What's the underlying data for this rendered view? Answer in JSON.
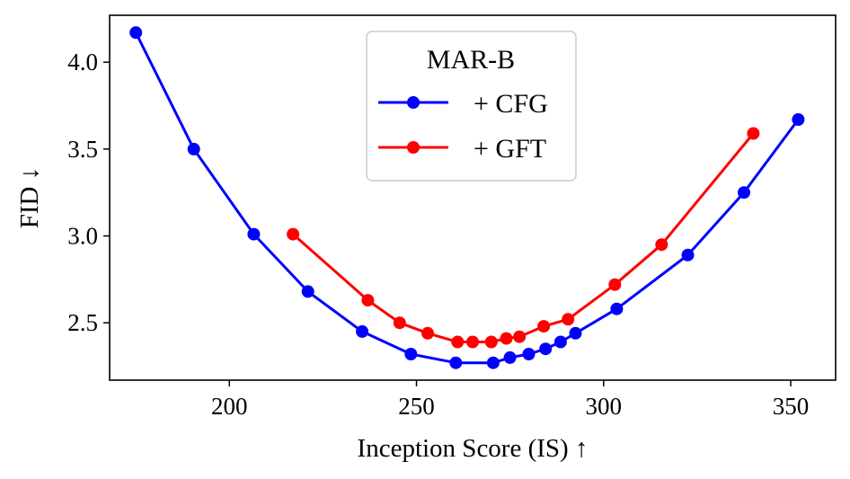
{
  "chart_data": {
    "type": "line",
    "xlabel": "Inception Score (IS) ↑",
    "ylabel": "FID ↓",
    "xlim": [
      168,
      362
    ],
    "ylim": [
      2.17,
      4.27
    ],
    "xticks": [
      200,
      250,
      300,
      350
    ],
    "yticks": [
      2.5,
      3.0,
      3.5,
      4.0
    ],
    "xtick_labels": [
      "200",
      "250",
      "300",
      "350"
    ],
    "ytick_labels": [
      "2.5",
      "3.0",
      "3.5",
      "4.0"
    ],
    "grid": false,
    "legend": {
      "title": "MAR-B",
      "placement": "top-center"
    },
    "series": [
      {
        "name": "+ CFG",
        "color": "#0000ff",
        "marker": "circle",
        "x": [
          175,
          190.5,
          206.5,
          221,
          235.5,
          248.5,
          260.5,
          270.5,
          275,
          280,
          284.5,
          288.5,
          292.5,
          303.5,
          322.5,
          337.5,
          352
        ],
        "y": [
          4.17,
          3.5,
          3.01,
          2.68,
          2.45,
          2.32,
          2.27,
          2.27,
          2.3,
          2.32,
          2.35,
          2.39,
          2.44,
          2.58,
          2.89,
          3.25,
          3.67
        ]
      },
      {
        "name": "+ GFT",
        "color": "#ff0000",
        "marker": "circle",
        "x": [
          217,
          237,
          245.5,
          253,
          261,
          265,
          270,
          274,
          277.5,
          284,
          290.5,
          303,
          315.5,
          340
        ],
        "y": [
          3.01,
          2.63,
          2.5,
          2.44,
          2.39,
          2.39,
          2.39,
          2.41,
          2.42,
          2.48,
          2.52,
          2.72,
          2.95,
          3.59
        ]
      }
    ]
  }
}
